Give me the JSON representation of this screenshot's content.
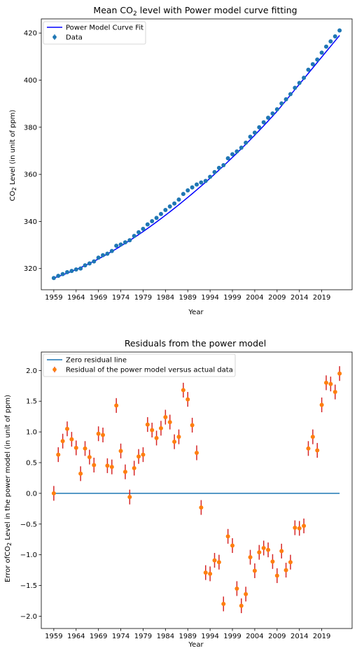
{
  "chart_data": [
    {
      "type": "scatter",
      "title_prefix": "Mean CO",
      "title_sub": "2",
      "title_suffix": " level with Power model curve fitting",
      "xlabel": "Year",
      "ylabel_prefix": "CO",
      "ylabel_sub": "2",
      "ylabel_suffix": " Level (in unit of ppm)",
      "xlim": [
        1956.2,
        2025.8
      ],
      "ylim": [
        311,
        426
      ],
      "xticks": [
        1959,
        1964,
        1969,
        1974,
        1979,
        1984,
        1989,
        1994,
        1999,
        2004,
        2009,
        2014,
        2019
      ],
      "yticks": [
        320,
        340,
        360,
        380,
        400,
        420
      ],
      "legend_position": "upper left",
      "colors": {
        "fit": "#0000ff",
        "data": "#1f77b4"
      },
      "series": [
        {
          "name": "Power Model Curve Fit",
          "kind": "line",
          "x": [
            1959,
            1969,
            1979,
            1989,
            1999,
            2009,
            2023
          ],
          "y": [
            315.97,
            324.1,
            335.7,
            350.2,
            367.2,
            386.8,
            419.0
          ]
        },
        {
          "name": "Data",
          "kind": "errorbar",
          "x": [
            1959,
            1960,
            1961,
            1962,
            1963,
            1964,
            1965,
            1966,
            1967,
            1968,
            1969,
            1970,
            1971,
            1972,
            1973,
            1974,
            1975,
            1976,
            1977,
            1978,
            1979,
            1980,
            1981,
            1982,
            1983,
            1984,
            1985,
            1986,
            1987,
            1988,
            1989,
            1990,
            1991,
            1992,
            1993,
            1994,
            1995,
            1996,
            1997,
            1998,
            1999,
            2000,
            2001,
            2002,
            2003,
            2004,
            2005,
            2006,
            2007,
            2008,
            2009,
            2010,
            2011,
            2012,
            2013,
            2014,
            2015,
            2016,
            2017,
            2018,
            2019,
            2020,
            2021,
            2022,
            2023
          ],
          "y": [
            315.97,
            316.91,
            317.64,
            318.45,
            318.99,
            319.62,
            320.04,
            321.37,
            322.18,
            323.05,
            324.62,
            325.68,
            326.32,
            327.46,
            329.68,
            330.19,
            331.13,
            332.03,
            333.84,
            335.41,
            336.84,
            338.76,
            340.12,
            341.48,
            343.15,
            344.87,
            346.35,
            347.61,
            349.31,
            351.69,
            353.2,
            354.45,
            355.7,
            356.54,
            357.21,
            358.96,
            360.97,
            362.74,
            363.88,
            366.84,
            368.54,
            369.71,
            371.32,
            373.45,
            375.98,
            377.7,
            379.98,
            382.09,
            384.02,
            385.83,
            387.64,
            390.1,
            391.85,
            394.06,
            396.74,
            398.81,
            401.01,
            404.41,
            406.76,
            408.72,
            411.66,
            414.24,
            416.45,
            418.56,
            421.08
          ],
          "yerr": 0.12
        }
      ]
    },
    {
      "type": "scatter",
      "title": "Residuals from the power model",
      "xlabel": "Year",
      "ylabel_prefix": "Error of",
      "ylabel_sub": "2",
      "ylabel_co": "CO",
      "ylabel_suffix": " Level in the power model (in unit of ppm)",
      "xlim": [
        1956.2,
        2025.8
      ],
      "ylim": [
        -2.2,
        2.3
      ],
      "xticks": [
        1959,
        1964,
        1969,
        1974,
        1979,
        1984,
        1989,
        1994,
        1999,
        2004,
        2009,
        2014,
        2019
      ],
      "yticks": [
        -2.0,
        -1.5,
        -1.0,
        -0.5,
        0.0,
        0.5,
        1.0,
        1.5,
        2.0
      ],
      "ytick_labels": [
        "−2.0",
        "−1.5",
        "−1.0",
        "−0.5",
        "0.0",
        "0.5",
        "1.0",
        "1.5",
        "2.0"
      ],
      "legend_position": "upper left",
      "colors": {
        "zero": "#1f77b4",
        "marker": "#ff7f0e",
        "err": "#d62728"
      },
      "series": [
        {
          "name": "Zero residual line",
          "kind": "line",
          "x": [
            1959,
            2023
          ],
          "y": [
            0,
            0
          ]
        },
        {
          "name": "Residual of the power model versus actual data",
          "kind": "errorbar",
          "x": [
            1959,
            1960,
            1961,
            1962,
            1963,
            1964,
            1965,
            1966,
            1967,
            1968,
            1969,
            1970,
            1971,
            1972,
            1973,
            1974,
            1975,
            1976,
            1977,
            1978,
            1979,
            1980,
            1981,
            1982,
            1983,
            1984,
            1985,
            1986,
            1987,
            1988,
            1989,
            1990,
            1991,
            1992,
            1993,
            1994,
            1995,
            1996,
            1997,
            1998,
            1999,
            2000,
            2001,
            2002,
            2003,
            2004,
            2005,
            2006,
            2007,
            2008,
            2009,
            2010,
            2011,
            2012,
            2013,
            2014,
            2015,
            2016,
            2017,
            2018,
            2019,
            2020,
            2021,
            2022,
            2023
          ],
          "y": [
            0.0,
            0.63,
            0.85,
            1.05,
            0.88,
            0.74,
            0.32,
            0.73,
            0.59,
            0.46,
            0.97,
            0.95,
            0.45,
            0.43,
            1.43,
            0.69,
            0.35,
            -0.06,
            0.41,
            0.6,
            0.63,
            1.12,
            1.03,
            0.9,
            1.06,
            1.24,
            1.16,
            0.84,
            0.92,
            1.68,
            1.53,
            1.11,
            0.66,
            -0.23,
            -1.29,
            -1.31,
            -1.09,
            -1.12,
            -1.8,
            -0.7,
            -0.85,
            -1.55,
            -1.83,
            -1.64,
            -1.04,
            -1.26,
            -0.96,
            -0.89,
            -0.92,
            -1.11,
            -1.34,
            -0.94,
            -1.25,
            -1.12,
            -0.56,
            -0.57,
            -0.53,
            0.73,
            0.92,
            0.7,
            1.44,
            1.8,
            1.78,
            1.65,
            1.95
          ],
          "yerr": 0.12
        }
      ]
    }
  ]
}
